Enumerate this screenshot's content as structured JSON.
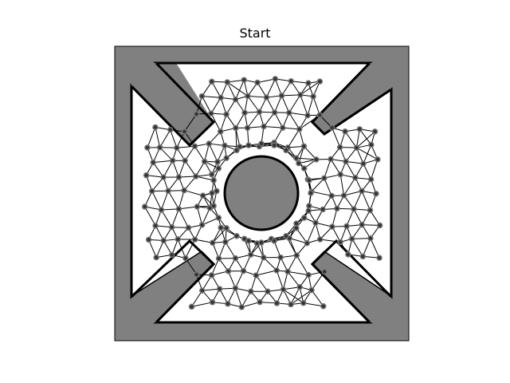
{
  "figure": {
    "title": "Start",
    "colors": {
      "wall_fill": "#808080",
      "free_space": "#ffffff",
      "outline": "#000000",
      "edge": "#000000",
      "node": "#333333",
      "node_halo": "#777777"
    }
  }
}
